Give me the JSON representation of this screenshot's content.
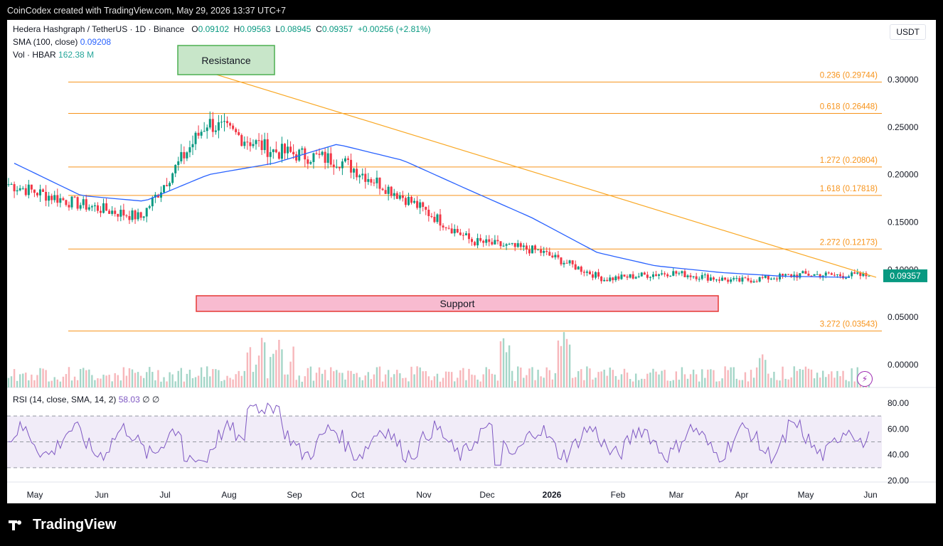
{
  "header": {
    "text": "CoinCodex created with TradingView.com, May 29, 2026 13:37 UTC+7"
  },
  "legend": {
    "title": "Hedera Hashgraph / TetherUS · 1D · Binance",
    "o_label": "O",
    "o": "0.09102",
    "h_label": "H",
    "h": "0.09563",
    "l_label": "L",
    "l": "0.08945",
    "c_label": "C",
    "c": "0.09357",
    "change": "+0.00256 (+2.81%)",
    "sma_label": "SMA (100, close)",
    "sma_value": "0.09208",
    "vol_label": "Vol · HBAR",
    "vol_value": "162.38 M"
  },
  "rsi_legend": {
    "label": "RSI (14, close, SMA, 14, 2)",
    "value": "58.03",
    "extra": "∅  ∅"
  },
  "currency_button": "USDT",
  "logo_text": "TradingView",
  "colors": {
    "up": "#089981",
    "down": "#f23645",
    "sma": "#2962ff",
    "fib": "#f7931a",
    "trend": "#f9a825",
    "rsi": "#7e57c2",
    "resistance_fill": "#c8e6c9",
    "support_fill": "#f8bbd0"
  },
  "chart_data": {
    "type": "line",
    "title": "Hedera Hashgraph / TetherUS · 1D · Binance",
    "x_axis_labels": [
      "May",
      "Jun",
      "Jul",
      "Aug",
      "Sep",
      "Oct",
      "Nov",
      "Dec",
      "2026",
      "Feb",
      "Mar",
      "Apr",
      "May",
      "Jun"
    ],
    "y_axis_ticks": [
      "0.30000",
      "0.25000",
      "0.20000",
      "0.15000",
      "0.10000",
      "0.05000",
      "0.00000"
    ],
    "ylim": [
      0.0,
      0.31
    ],
    "last_price": "0.09357",
    "price_series": {
      "name": "HBAR/USDT close",
      "months": [
        "May",
        "Jun",
        "Jul",
        "Aug",
        "Sep",
        "Oct",
        "Nov",
        "Dec",
        "2026",
        "Feb",
        "Mar",
        "Apr",
        "May",
        "Jun"
      ],
      "values": [
        0.19,
        0.17,
        0.155,
        0.255,
        0.225,
        0.215,
        0.175,
        0.13,
        0.12,
        0.09,
        0.097,
        0.088,
        0.095,
        0.0936
      ]
    },
    "sma_series": {
      "months": [
        "May",
        "Jun",
        "Jul",
        "Aug",
        "Sep",
        "Oct",
        "Nov",
        "Dec",
        "2026",
        "Feb",
        "Mar",
        "Apr",
        "May",
        "Jun"
      ],
      "values": [
        0.212,
        0.178,
        0.172,
        0.2,
        0.212,
        0.232,
        0.215,
        0.185,
        0.155,
        0.118,
        0.104,
        0.097,
        0.093,
        0.092
      ]
    },
    "fib_levels": [
      {
        "label": "0.236 (0.29744)",
        "value": 0.29744
      },
      {
        "label": "0.618 (0.26448)",
        "value": 0.26448
      },
      {
        "label": "1.272 (0.20804)",
        "value": 0.20804
      },
      {
        "label": "1.618 (0.17818)",
        "value": 0.17818
      },
      {
        "label": "2.272 (0.12173)",
        "value": 0.12173
      },
      {
        "label": "3.272 (0.03543)",
        "value": 0.03543
      }
    ],
    "annotations": {
      "resistance": "Resistance",
      "support": "Support"
    },
    "rsi": {
      "ticks": [
        "80.00",
        "60.00",
        "40.00",
        "20.00"
      ],
      "ylim": [
        20,
        90
      ],
      "band": [
        30,
        70
      ],
      "midline": 50
    }
  }
}
